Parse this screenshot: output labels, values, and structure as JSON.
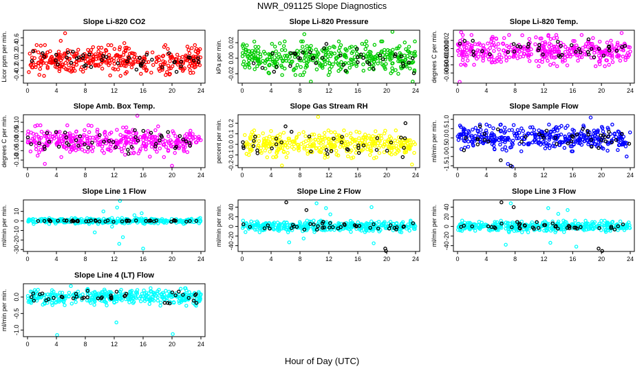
{
  "figure": {
    "title": "NWR_091125  Slope Diagnostics",
    "xlabel": "Hour of Day (UTC)"
  },
  "palette": {
    "red": "#ff0000",
    "green": "#00cc00",
    "magenta": "#ff00ff",
    "yellow": "#ffff00",
    "blue": "#0000ff",
    "cyan": "#00ffff",
    "black": "#000000"
  },
  "chart_data": [
    {
      "type": "scatter",
      "title": "Slope Li-820 CO2",
      "ylabel": "Licor ppm per min.",
      "xlim": [
        0,
        24
      ],
      "xticks": [
        0,
        4,
        8,
        12,
        16,
        20,
        24
      ],
      "xtick_labels": [
        "0",
        "4",
        "8",
        "12",
        "16",
        "20",
        "24"
      ],
      "ylim": [
        -0.6,
        0.8
      ],
      "yticks": [
        -0.4,
        -0.2,
        0,
        0.2,
        0.4,
        0.6
      ],
      "ytick_labels": [
        "-0.4",
        "-0.2",
        "0.0",
        "0.2",
        "0.4",
        "0.6"
      ],
      "color": "red",
      "series": [
        {
          "name": "all",
          "color": "red",
          "n": 380,
          "center": 0.0,
          "spread": 0.17,
          "outliers": [
            [
              5.2,
              0.72
            ],
            [
              4.6,
              0.52
            ],
            [
              8.1,
              -0.62
            ],
            [
              13.4,
              0.46
            ]
          ]
        },
        {
          "name": "highlight",
          "color": "black",
          "n": 45,
          "center": 0.0,
          "spread": 0.14,
          "outliers": []
        }
      ]
    },
    {
      "type": "scatter",
      "title": "Slope Li-820 Pressure",
      "ylabel": "kPa per min.",
      "xlim": [
        0,
        24
      ],
      "xticks": [
        0,
        4,
        8,
        12,
        16,
        20,
        24
      ],
      "xtick_labels": [
        "0",
        "4",
        "8",
        "12",
        "16",
        "20",
        "24"
      ],
      "ylim": [
        -0.032,
        0.036
      ],
      "yticks": [
        -0.02,
        0,
        0.02
      ],
      "ytick_labels": [
        "-0.02",
        "0.00",
        "0.02"
      ],
      "color": "green",
      "series": [
        {
          "name": "all",
          "color": "green",
          "n": 380,
          "center": 0.0,
          "spread": 0.009,
          "outliers": [
            [
              20.8,
              0.034
            ],
            [
              8.6,
              0.031
            ],
            [
              9.5,
              -0.03
            ],
            [
              23.6,
              -0.03
            ]
          ]
        },
        {
          "name": "highlight",
          "color": "black",
          "n": 40,
          "center": 0.0,
          "spread": 0.008,
          "outliers": []
        }
      ]
    },
    {
      "type": "scatter",
      "title": "Slope Li-820 Temp.",
      "ylabel": "degrees C per min.",
      "xlim": [
        0,
        24
      ],
      "xticks": [
        0,
        4,
        8,
        12,
        16,
        20,
        24
      ],
      "xtick_labels": [
        "0",
        "4",
        "8",
        "12",
        "16",
        "20",
        "24"
      ],
      "ylim": [
        -0.0085,
        0.0045
      ],
      "yticks": [
        -0.006,
        -0.004,
        -0.002,
        0,
        0.002
      ],
      "ytick_labels": [
        "-0.006",
        "-0.004",
        "-0.002",
        "0.000",
        "0.002"
      ],
      "color": "magenta",
      "series": [
        {
          "name": "all",
          "color": "magenta",
          "n": 380,
          "center": -0.0005,
          "spread": 0.0016,
          "outliers": [
            [
              0.3,
              -0.0082
            ],
            [
              0.5,
              0.004
            ],
            [
              22.8,
              0.0038
            ]
          ]
        },
        {
          "name": "highlight",
          "color": "black",
          "n": 40,
          "center": 0.0,
          "spread": 0.0012,
          "outliers": []
        }
      ]
    },
    {
      "type": "scatter",
      "title": "Slope Amb. Box Temp.",
      "ylabel": "degrees C per min.",
      "xlim": [
        0,
        24
      ],
      "xticks": [
        0,
        4,
        8,
        12,
        16,
        20,
        24
      ],
      "xtick_labels": [
        "0",
        "4",
        "8",
        "12",
        "16",
        "20",
        "24"
      ],
      "ylim": [
        -0.14,
        0.14
      ],
      "yticks": [
        -0.1,
        -0.05,
        0,
        0.05,
        0.1
      ],
      "ytick_labels": [
        "-0.10",
        "-0.05",
        "0.00",
        "0.05",
        "0.10"
      ],
      "color": "magenta",
      "series": [
        {
          "name": "all",
          "color": "magenta",
          "n": 380,
          "center": 0.0,
          "spread": 0.035,
          "outliers": [
            [
              15.2,
              0.135
            ],
            [
              20.0,
              -0.13
            ],
            [
              2.4,
              -0.12
            ]
          ]
        },
        {
          "name": "highlight",
          "color": "black",
          "n": 45,
          "center": 0.0,
          "spread": 0.03,
          "outliers": []
        }
      ]
    },
    {
      "type": "scatter",
      "title": "Slope Gas Stream RH",
      "ylabel": "percent per min.",
      "xlim": [
        0,
        24
      ],
      "xticks": [
        0,
        4,
        8,
        12,
        16,
        20,
        24
      ],
      "xtick_labels": [
        "0",
        "4",
        "8",
        "12",
        "16",
        "20",
        "24"
      ],
      "ylim": [
        -0.22,
        0.28
      ],
      "yticks": [
        -0.2,
        -0.1,
        0,
        0.1,
        0.2
      ],
      "ytick_labels": [
        "-0.2",
        "-0.1",
        "0.0",
        "0.1",
        "0.2"
      ],
      "color": "yellow",
      "series": [
        {
          "name": "all",
          "color": "yellow",
          "n": 380,
          "center": 0.0,
          "spread": 0.055,
          "outliers": [
            [
              10.5,
              0.26
            ],
            [
              5.5,
              -0.2
            ],
            [
              23.5,
              -0.19
            ]
          ]
        },
        {
          "name": "highlight",
          "color": "black",
          "n": 35,
          "center": 0.0,
          "spread": 0.05,
          "outliers": [
            [
              6.0,
              0.17
            ],
            [
              22.6,
              0.2
            ]
          ]
        }
      ]
    },
    {
      "type": "scatter",
      "title": "Slope Sample Flow",
      "ylabel": "ml/min per min.",
      "xlim": [
        0,
        24
      ],
      "xticks": [
        0,
        4,
        8,
        12,
        16,
        20,
        24
      ],
      "xtick_labels": [
        "0",
        "4",
        "8",
        "12",
        "16",
        "20",
        "24"
      ],
      "ylim": [
        -1.6,
        1.25
      ],
      "yticks": [
        -1.5,
        -1.0,
        -0.5,
        0,
        0.5,
        1.0
      ],
      "ytick_labels": [
        "-1.5",
        "-1.0",
        "-0.5",
        "0.0",
        "0.5",
        "1.0"
      ],
      "color": "blue",
      "series": [
        {
          "name": "all",
          "color": "blue",
          "n": 380,
          "center": 0.0,
          "spread": 0.3,
          "outliers": [
            [
              18.5,
              1.1
            ],
            [
              7.0,
              -1.4
            ],
            [
              7.6,
              -1.55
            ],
            [
              23.5,
              -1.0
            ]
          ]
        },
        {
          "name": "highlight",
          "color": "black",
          "n": 40,
          "center": 0.0,
          "spread": 0.28,
          "outliers": [
            [
              6.0,
              -1.2
            ],
            [
              7.4,
              -1.5
            ]
          ]
        }
      ]
    },
    {
      "type": "scatter",
      "title": "Slope Line 1 Flow",
      "ylabel": "ml/min per min.",
      "xlim": [
        0,
        24
      ],
      "xticks": [
        0,
        4,
        8,
        12,
        16,
        20,
        24
      ],
      "xtick_labels": [
        "0",
        "4",
        "8",
        "12",
        "16",
        "20",
        "24"
      ],
      "ylim": [
        -32,
        22
      ],
      "yticks": [
        -30,
        -20,
        -10,
        0,
        10
      ],
      "ytick_labels": [
        "-30",
        "-20",
        "-10",
        "0",
        "10"
      ],
      "color": "cyan",
      "series": [
        {
          "name": "all",
          "color": "cyan",
          "n": 380,
          "center": 0.0,
          "spread": 1.3,
          "outliers": [
            [
              12.8,
              21
            ],
            [
              12.7,
              -24
            ],
            [
              13.2,
              -17
            ],
            [
              16.0,
              -29
            ],
            [
              9.3,
              -12
            ],
            [
              10.5,
              10
            ],
            [
              14.8,
              6
            ],
            [
              15.8,
              8
            ],
            [
              11.7,
              -6
            ],
            [
              12.4,
              14
            ]
          ]
        },
        {
          "name": "highlight",
          "color": "black",
          "n": 45,
          "center": 0.0,
          "spread": 0.5,
          "outliers": []
        }
      ]
    },
    {
      "type": "scatter",
      "title": "Slope Line 2 Flow",
      "ylabel": "ml/min per min.",
      "xlim": [
        0,
        24
      ],
      "xticks": [
        0,
        4,
        8,
        12,
        16,
        20,
        24
      ],
      "xtick_labels": [
        "0",
        "4",
        "8",
        "12",
        "16",
        "20",
        "24"
      ],
      "ylim": [
        -52,
        55
      ],
      "yticks": [
        -40,
        -20,
        0,
        20,
        40
      ],
      "ytick_labels": [
        "-40",
        "-20",
        "0",
        "20",
        "40"
      ],
      "color": "cyan",
      "series": [
        {
          "name": "all",
          "color": "cyan",
          "n": 380,
          "center": 0.0,
          "spread": 5,
          "outliers": [
            [
              10.3,
              48
            ],
            [
              11.6,
              38
            ],
            [
              17.9,
              40
            ],
            [
              6.5,
              -33
            ],
            [
              18.2,
              -35
            ],
            [
              12.2,
              25
            ],
            [
              8.5,
              -25
            ]
          ]
        },
        {
          "name": "highlight",
          "color": "black",
          "n": 40,
          "center": 0.0,
          "spread": 4,
          "outliers": [
            [
              6.1,
              50
            ],
            [
              8.9,
              34
            ],
            [
              19.8,
              -46
            ],
            [
              19.9,
              -51
            ]
          ]
        }
      ]
    },
    {
      "type": "scatter",
      "title": "Slope Line 3 Flow",
      "ylabel": "ml/min per min.",
      "xlim": [
        0,
        24
      ],
      "xticks": [
        0,
        4,
        8,
        12,
        16,
        20,
        24
      ],
      "xtick_labels": [
        "0",
        "4",
        "8",
        "12",
        "16",
        "20",
        "24"
      ],
      "ylim": [
        -52,
        55
      ],
      "yticks": [
        -40,
        -20,
        0,
        20,
        40
      ],
      "ytick_labels": [
        "-40",
        "-20",
        "0",
        "20",
        "40"
      ],
      "color": "cyan",
      "series": [
        {
          "name": "all",
          "color": "cyan",
          "n": 380,
          "center": 0.0,
          "spread": 5,
          "outliers": [
            [
              7.4,
              48
            ],
            [
              12.6,
              38
            ],
            [
              15.3,
              34
            ],
            [
              6.7,
              -38
            ],
            [
              16.5,
              -42
            ],
            [
              12.9,
              -34
            ],
            [
              14.0,
              26
            ]
          ]
        },
        {
          "name": "highlight",
          "color": "black",
          "n": 40,
          "center": 0.0,
          "spread": 4,
          "outliers": [
            [
              6.1,
              50
            ],
            [
              7.8,
              40
            ],
            [
              19.6,
              -46
            ],
            [
              20.1,
              -51
            ]
          ]
        }
      ]
    },
    {
      "type": "scatter",
      "title": "Slope Line 4 (LT) Flow",
      "ylabel": "ml/min per min.",
      "xlim": [
        0,
        24
      ],
      "xticks": [
        0,
        4,
        8,
        12,
        16,
        20,
        24
      ],
      "xtick_labels": [
        "0",
        "4",
        "8",
        "12",
        "16",
        "20",
        "24"
      ],
      "ylim": [
        -1.2,
        0.4
      ],
      "yticks": [
        -1.0,
        -0.5,
        0
      ],
      "ytick_labels": [
        "-1.0",
        "-0.5",
        "0.0"
      ],
      "color": "cyan",
      "series": [
        {
          "name": "all",
          "color": "cyan",
          "n": 380,
          "center": 0.0,
          "spread": 0.11,
          "outliers": [
            [
              4.1,
              -1.15
            ],
            [
              12.3,
              -0.77
            ],
            [
              20.1,
              -1.12
            ],
            [
              6.0,
              0.33
            ]
          ]
        },
        {
          "name": "highlight",
          "color": "black",
          "n": 40,
          "center": 0.0,
          "spread": 0.09,
          "outliers": []
        }
      ]
    }
  ]
}
